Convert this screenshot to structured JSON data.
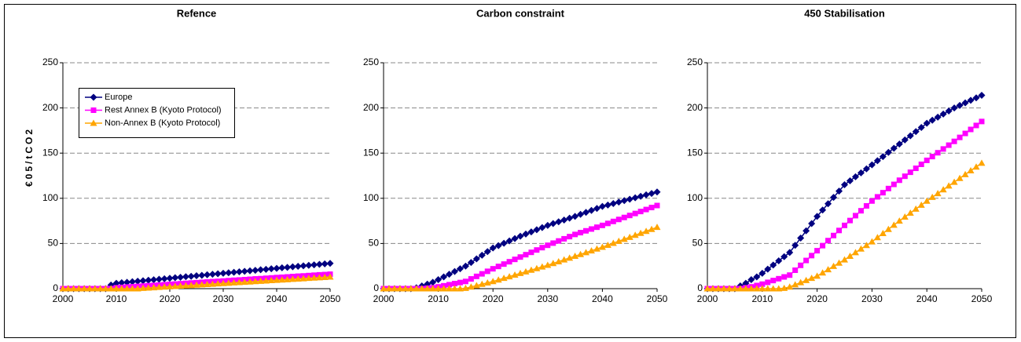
{
  "chart_data": [
    {
      "type": "line",
      "title": "Refence",
      "y_label": "€05/tCO2",
      "legend": "upper left",
      "grid": true,
      "x": [
        2000,
        2001,
        2002,
        2003,
        2004,
        2005,
        2006,
        2007,
        2008,
        2009,
        2010,
        2011,
        2012,
        2013,
        2014,
        2015,
        2016,
        2017,
        2018,
        2019,
        2020,
        2021,
        2022,
        2023,
        2024,
        2025,
        2026,
        2027,
        2028,
        2029,
        2030,
        2031,
        2032,
        2033,
        2034,
        2035,
        2036,
        2037,
        2038,
        2039,
        2040,
        2041,
        2042,
        2043,
        2044,
        2045,
        2046,
        2047,
        2048,
        2049,
        2050
      ],
      "xlim": [
        2000,
        2050
      ],
      "xticks": [
        2000,
        2010,
        2020,
        2030,
        2040,
        2050
      ],
      "ylim": [
        0,
        250
      ],
      "yticks": [
        0,
        50,
        100,
        150,
        200,
        250
      ],
      "series": [
        {
          "name": "Europe",
          "color": "#000080",
          "marker": "diamond",
          "values": [
            0,
            0,
            0,
            0,
            0,
            0,
            0,
            0,
            0,
            4,
            6,
            6.6,
            7.1,
            7.7,
            8.2,
            8.8,
            9.3,
            9.9,
            10.4,
            11,
            11.5,
            12.1,
            12.6,
            13.2,
            13.7,
            14.3,
            14.8,
            15.4,
            15.9,
            16.5,
            17,
            17.6,
            18.1,
            18.7,
            19.2,
            19.8,
            20.3,
            20.9,
            21.4,
            22,
            22.5,
            23.1,
            23.6,
            24.2,
            24.7,
            25.3,
            25.8,
            26.4,
            26.9,
            27.5,
            28
          ]
        },
        {
          "name": "Rest Annex B (Kyoto Protocol)",
          "color": "#FF00FF",
          "marker": "square",
          "values": [
            0,
            0,
            0,
            0,
            0,
            0,
            0,
            0,
            0,
            0,
            1,
            1.4,
            1.8,
            2.1,
            2.5,
            2.9,
            3.3,
            3.6,
            4,
            4.4,
            4.8,
            5.1,
            5.5,
            5.9,
            6.3,
            6.6,
            7,
            7.4,
            7.8,
            8.1,
            8.5,
            8.9,
            9.3,
            9.6,
            10,
            10.4,
            10.8,
            11.1,
            11.5,
            11.9,
            12.3,
            12.6,
            13,
            13.4,
            13.8,
            14.1,
            14.5,
            14.9,
            15.3,
            15.6,
            16
          ]
        },
        {
          "name": "Non-Annex B (Kyoto Protocol)",
          "color": "#FFA500",
          "marker": "triangle",
          "values": [
            0,
            0,
            0,
            0,
            0,
            0,
            0,
            0,
            0,
            0,
            0,
            0,
            0,
            0,
            0,
            0.5,
            0.9,
            1.2,
            1.6,
            1.9,
            2.3,
            2.6,
            3,
            3.4,
            3.7,
            4.1,
            4.4,
            4.8,
            5.1,
            5.5,
            5.9,
            6.2,
            6.6,
            6.9,
            7.3,
            7.6,
            8,
            8.4,
            8.7,
            9.1,
            9.4,
            9.8,
            10.1,
            10.5,
            10.9,
            11.2,
            11.6,
            11.9,
            12.3,
            12.6,
            13
          ]
        }
      ]
    },
    {
      "type": "line",
      "title": "Carbon constraint",
      "grid": true,
      "x": [
        2000,
        2001,
        2002,
        2003,
        2004,
        2005,
        2006,
        2007,
        2008,
        2009,
        2010,
        2011,
        2012,
        2013,
        2014,
        2015,
        2016,
        2017,
        2018,
        2019,
        2020,
        2021,
        2022,
        2023,
        2024,
        2025,
        2026,
        2027,
        2028,
        2029,
        2030,
        2031,
        2032,
        2033,
        2034,
        2035,
        2036,
        2037,
        2038,
        2039,
        2040,
        2041,
        2042,
        2043,
        2044,
        2045,
        2046,
        2047,
        2048,
        2049,
        2050
      ],
      "xlim": [
        2000,
        2050
      ],
      "xticks": [
        2000,
        2010,
        2020,
        2030,
        2040,
        2050
      ],
      "ylim": [
        0,
        250
      ],
      "yticks": [
        0,
        50,
        100,
        150,
        200,
        250
      ],
      "series": [
        {
          "color": "#000080",
          "marker": "diamond",
          "values": [
            0,
            0,
            0,
            0,
            0,
            0,
            1,
            3,
            5,
            7,
            10,
            13,
            16,
            19,
            22,
            25,
            29,
            33,
            37,
            41,
            45,
            47.6,
            50.2,
            52.8,
            55.4,
            58,
            60.4,
            62.8,
            65.2,
            67.6,
            70,
            72,
            74,
            76,
            78,
            80,
            82.2,
            84.4,
            86.6,
            88.8,
            91,
            92.6,
            94.2,
            95.8,
            97.4,
            99,
            100.6,
            102.2,
            103.8,
            105.4,
            107
          ]
        },
        {
          "color": "#FF00FF",
          "marker": "square",
          "values": [
            0,
            0,
            0,
            0,
            0,
            0,
            0,
            0,
            0.5,
            1,
            2,
            3.2,
            4.4,
            5.6,
            6.8,
            8,
            10.8,
            13.6,
            16.4,
            19.2,
            22,
            24.6,
            27.2,
            29.8,
            32.4,
            35,
            37.6,
            40.2,
            42.8,
            45.4,
            48,
            50.4,
            52.8,
            55.2,
            57.6,
            60,
            62,
            64,
            66,
            68,
            70,
            72.2,
            74.4,
            76.6,
            78.8,
            81,
            83.2,
            85.4,
            87.6,
            89.8,
            92
          ]
        },
        {
          "color": "#FFA500",
          "marker": "triangle",
          "values": [
            0,
            0,
            0,
            0,
            0,
            0,
            0,
            0,
            0,
            0,
            0,
            0,
            0,
            0,
            0,
            0.5,
            2,
            3.5,
            5,
            6.5,
            8,
            9.8,
            11.6,
            13.4,
            15.2,
            17,
            18.8,
            20.6,
            22.4,
            24.2,
            26,
            28,
            30,
            32,
            34,
            36,
            38,
            40,
            42,
            44,
            46,
            48.2,
            50.4,
            52.6,
            54.8,
            57,
            59.2,
            61.4,
            63.6,
            65.8,
            68
          ]
        }
      ]
    },
    {
      "type": "line",
      "title": "450 Stabilisation",
      "grid": true,
      "x": [
        2000,
        2001,
        2002,
        2003,
        2004,
        2005,
        2006,
        2007,
        2008,
        2009,
        2010,
        2011,
        2012,
        2013,
        2014,
        2015,
        2016,
        2017,
        2018,
        2019,
        2020,
        2021,
        2022,
        2023,
        2024,
        2025,
        2026,
        2027,
        2028,
        2029,
        2030,
        2031,
        2032,
        2033,
        2034,
        2035,
        2036,
        2037,
        2038,
        2039,
        2040,
        2041,
        2042,
        2043,
        2044,
        2045,
        2046,
        2047,
        2048,
        2049,
        2050
      ],
      "xlim": [
        2000,
        2050
      ],
      "xticks": [
        2000,
        2010,
        2020,
        2030,
        2040,
        2050
      ],
      "ylim": [
        0,
        250
      ],
      "yticks": [
        0,
        50,
        100,
        150,
        200,
        250
      ],
      "series": [
        {
          "color": "#000080",
          "marker": "diamond",
          "values": [
            0,
            0,
            0,
            0,
            0,
            0,
            3,
            6,
            10,
            13,
            17,
            21.6,
            26.2,
            30.8,
            35.4,
            40,
            48,
            56,
            64,
            72,
            80,
            87,
            94,
            101,
            108,
            115,
            119.4,
            123.8,
            128.2,
            132.6,
            137,
            141.6,
            146.2,
            150.8,
            155.4,
            160,
            164.6,
            169.2,
            173.8,
            178.4,
            183,
            186.4,
            189.8,
            193.2,
            196.6,
            200,
            202.8,
            205.6,
            208.4,
            211.2,
            214
          ]
        },
        {
          "color": "#FF00FF",
          "marker": "square",
          "values": [
            0,
            0,
            0,
            0,
            0,
            0,
            0,
            1,
            2,
            3.5,
            5,
            7,
            9,
            11,
            13,
            15,
            20.4,
            25.8,
            31.2,
            36.6,
            42,
            47.6,
            53.2,
            58.8,
            64.4,
            70,
            75.4,
            80.8,
            86.2,
            91.6,
            97,
            101.6,
            106.2,
            110.8,
            115.4,
            120,
            124.4,
            128.8,
            133.2,
            137.6,
            142,
            146.2,
            150.4,
            154.6,
            158.8,
            163,
            167.4,
            171.8,
            176.2,
            180.6,
            185
          ]
        },
        {
          "color": "#FFA500",
          "marker": "triangle",
          "values": [
            0,
            0,
            0,
            0,
            0,
            0,
            0,
            0,
            0,
            0,
            0,
            0,
            0,
            0,
            0.5,
            2,
            4.4,
            6.8,
            9.2,
            11.6,
            14,
            17.6,
            21.2,
            24.8,
            28.4,
            32,
            36,
            40,
            44,
            48,
            52,
            56.6,
            61.2,
            65.8,
            70.4,
            75,
            79.4,
            83.8,
            88.2,
            92.6,
            97,
            101.2,
            105.4,
            109.6,
            113.8,
            118,
            122.2,
            126.4,
            130.6,
            134.8,
            139
          ]
        }
      ]
    }
  ]
}
